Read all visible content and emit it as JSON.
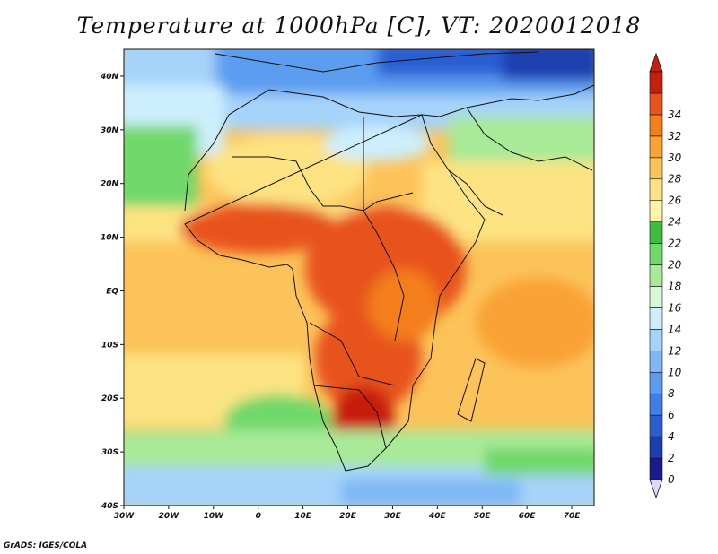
{
  "title": "Temperature at 1000hPa [C], VT: 2020012018",
  "footer": "GrADS: IGES/COLA",
  "map": {
    "lon_range": [
      -30,
      75
    ],
    "lat_range": [
      -40,
      45
    ],
    "lon_ticks": [
      {
        "value": -30,
        "label": "30W"
      },
      {
        "value": -20,
        "label": "20W"
      },
      {
        "value": -10,
        "label": "10W"
      },
      {
        "value": 0,
        "label": "0"
      },
      {
        "value": 10,
        "label": "10E"
      },
      {
        "value": 20,
        "label": "20E"
      },
      {
        "value": 30,
        "label": "30E"
      },
      {
        "value": 40,
        "label": "40E"
      },
      {
        "value": 50,
        "label": "50E"
      },
      {
        "value": 60,
        "label": "60E"
      },
      {
        "value": 70,
        "label": "70E"
      }
    ],
    "lat_ticks": [
      {
        "value": 40,
        "label": "40N"
      },
      {
        "value": 30,
        "label": "30N"
      },
      {
        "value": 20,
        "label": "20N"
      },
      {
        "value": 10,
        "label": "10N"
      },
      {
        "value": 0,
        "label": "EQ"
      },
      {
        "value": -10,
        "label": "10S"
      },
      {
        "value": -20,
        "label": "20S"
      },
      {
        "value": -30,
        "label": "30S"
      },
      {
        "value": -40,
        "label": "40S"
      }
    ]
  },
  "colorbar": {
    "levels": [
      "0",
      "2",
      "4",
      "6",
      "8",
      "10",
      "12",
      "14",
      "16",
      "18",
      "20",
      "22",
      "24",
      "26",
      "28",
      "30",
      "32",
      "34"
    ],
    "colors": [
      "#1a1a8c",
      "#1c3fb0",
      "#2b5fd1",
      "#3f7fe6",
      "#5c9df0",
      "#7fb8f5",
      "#a6d3fa",
      "#cdeefc",
      "#d8f6d8",
      "#a8ea98",
      "#6fd86a",
      "#3cbf3c",
      "#fff5a8",
      "#fde382",
      "#fcc35a",
      "#f9a236",
      "#f47e1c",
      "#e8531a",
      "#c81e10"
    ],
    "under_color": "#dcdcfa",
    "over_color": "#c81e10"
  }
}
